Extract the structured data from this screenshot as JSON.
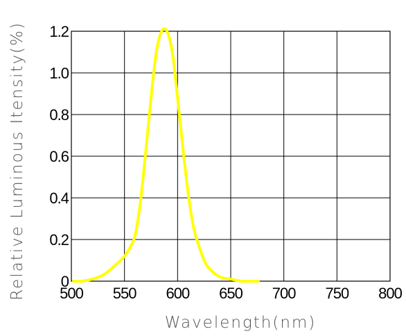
{
  "chart_data": {
    "type": "line",
    "title": "",
    "xlabel": "Wavelength(nm)",
    "ylabel": "Relative Luminous Itensity(%)",
    "xlim": [
      500,
      800
    ],
    "ylim": [
      0,
      1.2
    ],
    "x_ticks": [
      500,
      550,
      600,
      650,
      700,
      750,
      800
    ],
    "y_ticks": [
      0,
      0.2,
      0.4,
      0.6,
      0.8,
      1.0,
      1.2
    ],
    "y_tick_labels": [
      "0",
      "0.2",
      "0.4",
      "0.6",
      "0.8",
      "1.0",
      "1.2"
    ],
    "grid": true,
    "legend": "none",
    "series": [
      {
        "color": "#ffff00",
        "x": [
          502,
          510,
          520,
          530,
          540,
          550,
          555,
          560,
          565,
          570,
          575,
          580,
          585,
          590,
          595,
          600,
          605,
          610,
          615,
          620,
          625,
          630,
          640,
          650,
          660,
          670,
          676
        ],
        "y": [
          0.0,
          0.0,
          0.01,
          0.03,
          0.07,
          0.12,
          0.16,
          0.22,
          0.38,
          0.62,
          0.88,
          1.1,
          1.2,
          1.2,
          1.1,
          0.88,
          0.64,
          0.42,
          0.26,
          0.17,
          0.1,
          0.06,
          0.02,
          0.01,
          0.0,
          0.0,
          0.0
        ]
      }
    ]
  }
}
